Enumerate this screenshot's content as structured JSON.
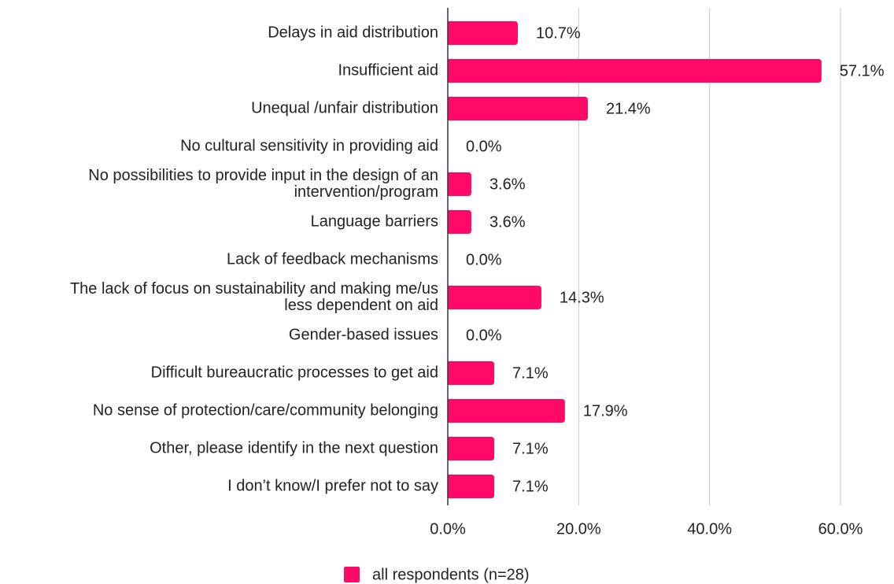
{
  "chart_data": {
    "type": "bar",
    "orientation": "horizontal",
    "categories": [
      "Delays in aid distribution",
      "Insufficient aid",
      "Unequal /unfair distribution",
      "No cultural sensitivity in providing aid",
      "No possibilities to provide  input in the design of an\nintervention/program",
      "Language barriers",
      "Lack of feedback mechanisms",
      "The lack of focus on sustainability and making me/us\nless dependent on aid",
      "Gender-based issues",
      "Difficult bureaucratic processes to get aid",
      "No sense of protection/care/community belonging",
      "Other, please identify in the next question",
      "I don’t know/I prefer not to say"
    ],
    "series": [
      {
        "name": "all respondents (n=28)",
        "color": "#ff0a66",
        "values": [
          10.7,
          57.1,
          21.4,
          0.0,
          3.6,
          3.6,
          0.0,
          14.3,
          0.0,
          7.1,
          17.9,
          7.1,
          7.1
        ],
        "value_labels": [
          "10.7%",
          "57.1%",
          "21.4%",
          "0.0%",
          "3.6%",
          "3.6%",
          "0.0%",
          "14.3%",
          "0.0%",
          "7.1%",
          "17.9%",
          "7.1%",
          "7.1%"
        ]
      }
    ],
    "xlim": [
      0,
      60
    ],
    "xticks": [
      {
        "value": 0,
        "label": "0.0%"
      },
      {
        "value": 20,
        "label": "20.0%"
      },
      {
        "value": 40,
        "label": "40.0%"
      },
      {
        "value": 60,
        "label": "60.0%"
      }
    ],
    "grid": true,
    "legend": "bottom"
  }
}
